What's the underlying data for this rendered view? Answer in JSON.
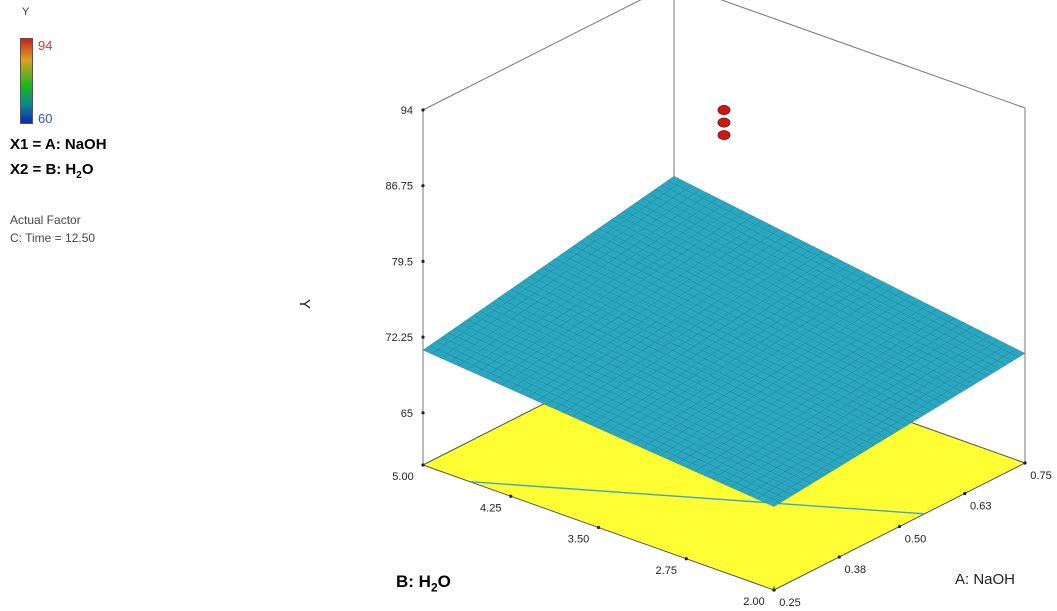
{
  "legend": {
    "title": "Y",
    "max_label": "94",
    "min_label": "60",
    "gradient_colors": [
      "#c0261e",
      "#e0a020",
      "#1cb81c",
      "#0a8a8a",
      "#1028b8"
    ]
  },
  "factors": {
    "x1_prefix": "X1 = A: NaOH",
    "x2_prefix": "X2 = B: H",
    "x2_sub": "2",
    "x2_suffix": "O"
  },
  "actual_factor": {
    "heading": "Actual Factor",
    "value": "C: Time = 12.50"
  },
  "chart_data": {
    "type": "surface3d",
    "title": "",
    "zlabel": "Y",
    "xlabel": "A: NaOH",
    "ylabel_prefix": "B: H",
    "ylabel_sub": "2",
    "ylabel_suffix": "O",
    "x_ticks": [
      "0.25",
      "0.38",
      "0.50",
      "0.63",
      "0.75"
    ],
    "y_ticks": [
      "2.00",
      "2.75",
      "3.50",
      "4.25",
      "5.00"
    ],
    "z_ticks": [
      "65",
      "72.25",
      "79.5",
      "86.75",
      "94"
    ],
    "xlim": [
      0.25,
      0.75
    ],
    "ylim": [
      2.0,
      5.0
    ],
    "zlim": [
      60,
      94
    ],
    "surface": {
      "corners": [
        {
          "A": 0.25,
          "B": 2.0,
          "Y": 68.0
        },
        {
          "A": 0.75,
          "B": 2.0,
          "Y": 70.5
        },
        {
          "A": 0.75,
          "B": 5.0,
          "Y": 75.5
        },
        {
          "A": 0.25,
          "B": 5.0,
          "Y": 71.0
        }
      ],
      "color": "#2aa6bf",
      "grid": 40
    },
    "floor_color": "#ffff33",
    "design_points": [
      {
        "A": 0.5,
        "B": 3.5,
        "Y": 91.5
      },
      {
        "A": 0.5,
        "B": 3.5,
        "Y": 92.7
      },
      {
        "A": 0.5,
        "B": 3.5,
        "Y": 93.9
      }
    ],
    "point_color": "#cc1a10"
  }
}
